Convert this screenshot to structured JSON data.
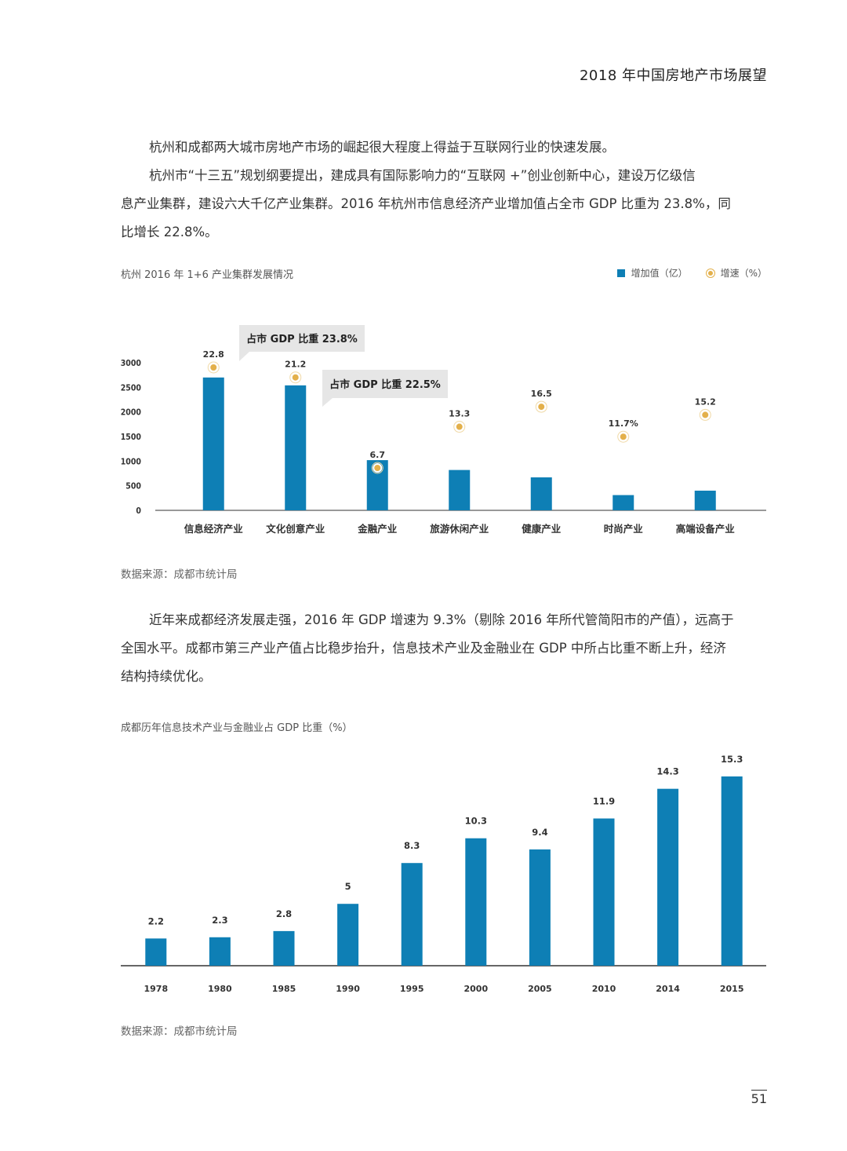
{
  "header": {
    "title": "2018 年中国房地产市场展望"
  },
  "paragraph1": {
    "lines": [
      "杭州和成都两大城市房地产市场的崛起很大程度上得益于互联网行业的快速发展。",
      "杭州市“十三五”规划纲要提出，建成具有国际影响力的“互联网 +”创业创新中心，建设万亿级信",
      "息产业集群，建设六大千亿产业集群。2016 年杭州市信息经济产业增加值占全市 GDP 比重为 23.8%，同",
      "比增长 22.8%。"
    ]
  },
  "chart1": {
    "title": "杭州 2016 年 1+6 产业集群发展情况",
    "legend": {
      "bar": "增加值（亿）",
      "dot": "增速（%）"
    },
    "source": "数据来源：成都市统计局",
    "callouts": [
      "占市 GDP 比重 23.8%",
      "占市 GDP 比重 22.5%"
    ],
    "growth_labels": [
      "22.8",
      "21.2",
      "6.7",
      "13.3",
      "16.5",
      "11.7%",
      "15.2"
    ]
  },
  "paragraph2": {
    "lines": [
      "近年来成都经济发展走强，2016 年 GDP 增速为 9.3%（剔除 2016 年所代管简阳市的产值），远高于",
      "全国水平。成都市第三产业产值占比稳步抬升，信息技术产业及金融业在 GDP 中所占比重不断上升，经济",
      "结构持续优化。"
    ]
  },
  "chart2": {
    "title": "成都历年信息技术产业与金融业占 GDP 比重（%）",
    "source": "数据来源：成都市统计局"
  },
  "page": {
    "number": "51"
  },
  "colors": {
    "bar": "#0e7fb5",
    "dot": "#e3b04b",
    "axis": "#333333",
    "callout_bg": "#e6e6e6"
  },
  "chart_data": [
    {
      "type": "bar",
      "title": "杭州 2016 年 1+6 产业集群发展情况",
      "categories": [
        "信息经济产业",
        "文化创意产业",
        "金融产业",
        "旅游休闲产业",
        "健康产业",
        "时尚产业",
        "高端设备产业"
      ],
      "series": [
        {
          "name": "增加值（亿）",
          "type": "bar",
          "values": [
            2700,
            2540,
            1020,
            820,
            670,
            310,
            400
          ]
        },
        {
          "name": "增速（%）",
          "type": "scatter",
          "values": [
            22.8,
            21.2,
            6.7,
            13.3,
            16.5,
            11.7,
            15.2
          ]
        }
      ],
      "yticks": [
        0,
        500,
        1000,
        1500,
        2000,
        2500,
        3000
      ],
      "ylim": [
        0,
        3000
      ],
      "grid": false,
      "legend": "top-right"
    },
    {
      "type": "bar",
      "title": "成都历年信息技术产业与金融业占 GDP 比重（%）",
      "categories": [
        "1978",
        "1980",
        "1985",
        "1990",
        "1995",
        "2000",
        "2005",
        "2010",
        "2014",
        "2015"
      ],
      "values": [
        2.2,
        2.3,
        2.8,
        5,
        8.3,
        10.3,
        9.4,
        11.9,
        14.3,
        15.3
      ],
      "ylim": [
        0,
        16.5
      ],
      "grid": false
    }
  ]
}
